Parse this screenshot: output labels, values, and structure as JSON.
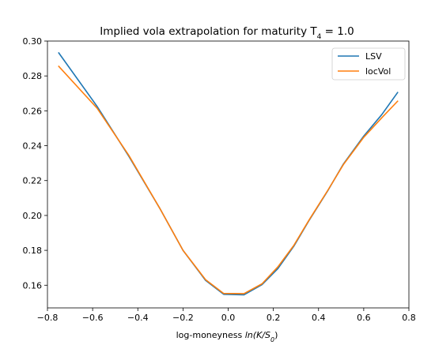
{
  "chart_data": {
    "type": "line",
    "title_main": "Implied vola extrapolation for maturity T",
    "title_sub": "4",
    "title_tail": " = 1.0",
    "xlabel_main": "log-moneyness ",
    "xlabel_math": "ln(K/S",
    "xlabel_sub": "0",
    "xlabel_tail": ")",
    "xlim": [
      -0.8,
      0.8
    ],
    "ylim": [
      0.147,
      0.3
    ],
    "xticks": [
      -0.8,
      -0.6,
      -0.4,
      -0.2,
      0.0,
      0.2,
      0.4,
      0.6,
      0.8
    ],
    "xtick_labels": [
      "−0.8",
      "−0.6",
      "−0.4",
      "−0.2",
      "0.0",
      "0.2",
      "0.4",
      "0.6",
      "0.8"
    ],
    "yticks": [
      0.16,
      0.18,
      0.2,
      0.22,
      0.24,
      0.26,
      0.28,
      0.3
    ],
    "ytick_labels": [
      "0.16",
      "0.18",
      "0.20",
      "0.22",
      "0.24",
      "0.26",
      "0.28",
      "0.30"
    ],
    "legend_position": "top-right",
    "grid": false,
    "series": [
      {
        "name": "LSV",
        "color": "#1f77b4",
        "x": [
          -0.75,
          -0.58,
          -0.44,
          -0.3,
          -0.2,
          -0.1,
          -0.02,
          0.07,
          0.15,
          0.22,
          0.29,
          0.36,
          0.44,
          0.51,
          0.6,
          0.68,
          0.75
        ],
        "y": [
          0.2932,
          0.2625,
          0.234,
          0.2035,
          0.18,
          0.1628,
          0.1548,
          0.1545,
          0.1603,
          0.1695,
          0.1822,
          0.1975,
          0.214,
          0.2295,
          0.2455,
          0.2578,
          0.2705
        ]
      },
      {
        "name": "locVol",
        "color": "#ff7f0e",
        "x": [
          -0.75,
          -0.58,
          -0.44,
          -0.3,
          -0.2,
          -0.1,
          -0.02,
          0.07,
          0.15,
          0.22,
          0.29,
          0.36,
          0.44,
          0.51,
          0.6,
          0.68,
          0.75
        ],
        "y": [
          0.2855,
          0.2615,
          0.2345,
          0.2035,
          0.18,
          0.1632,
          0.1553,
          0.1552,
          0.1608,
          0.1705,
          0.1827,
          0.1978,
          0.2142,
          0.2292,
          0.2448,
          0.256,
          0.2655
        ]
      }
    ]
  }
}
